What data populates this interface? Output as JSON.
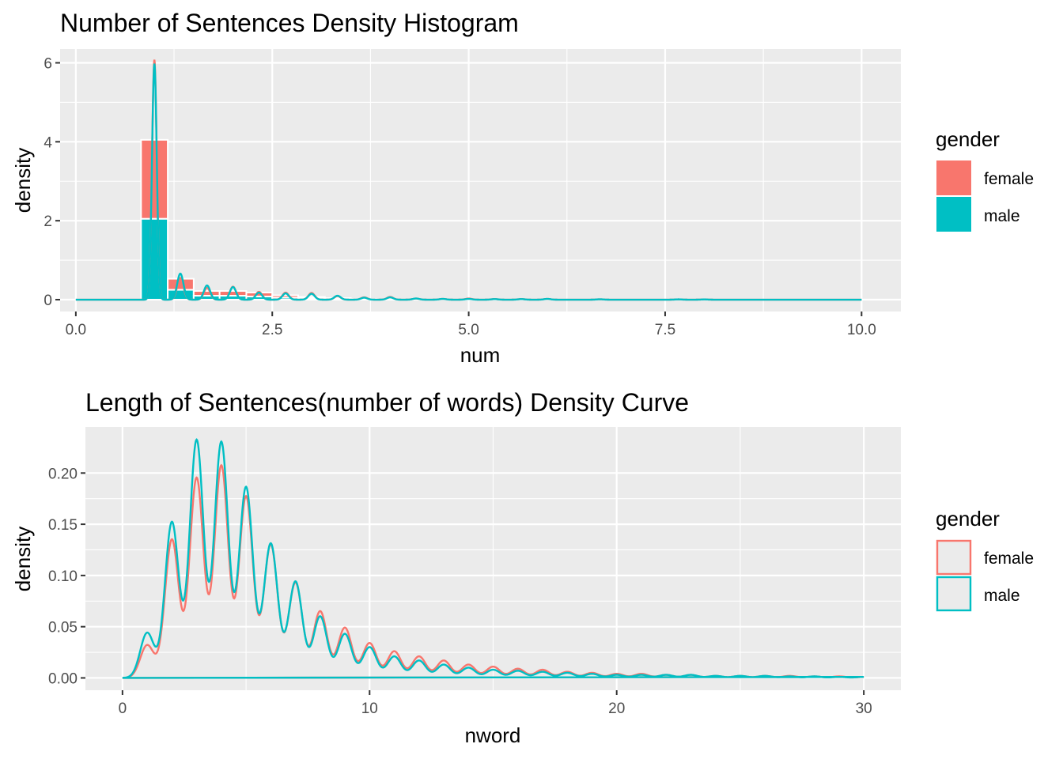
{
  "colors": {
    "female": "#F8766D",
    "male": "#00BFC4",
    "panel": "#EBEBEB",
    "grid": "#FFFFFF"
  },
  "chart_data": [
    {
      "type": "histogram",
      "title": "Number of Sentences Density Histogram",
      "xlabel": "num",
      "ylabel": "density",
      "xlim": [
        -0.2,
        10.5
      ],
      "ylim": [
        -0.3,
        6.35
      ],
      "x_ticks": [
        0,
        2.5,
        5,
        7.5,
        10
      ],
      "x_tick_labels": [
        "0.0",
        "2.5",
        "5.0",
        "7.5",
        "10.0"
      ],
      "y_ticks": [
        0,
        2,
        4,
        6
      ],
      "y_tick_labels": [
        "0",
        "2",
        "4",
        "6"
      ],
      "grid": true,
      "position": "stack",
      "bins": [
        {
          "x0": 0.83,
          "x1": 1.17,
          "female": 2.0,
          "male": 2.05
        },
        {
          "x0": 1.17,
          "x1": 1.5,
          "female": 0.28,
          "male": 0.25
        },
        {
          "x0": 1.5,
          "x1": 1.83,
          "female": 0.12,
          "male": 0.1
        },
        {
          "x0": 1.83,
          "x1": 2.17,
          "female": 0.12,
          "male": 0.1
        },
        {
          "x0": 2.17,
          "x1": 2.5,
          "female": 0.1,
          "male": 0.08
        },
        {
          "x0": 2.5,
          "x1": 2.83,
          "female": 0.06,
          "male": 0.05
        },
        {
          "x0": 2.83,
          "x1": 3.17,
          "female": 0.04,
          "male": 0.03
        },
        {
          "x0": 3.17,
          "x1": 3.5,
          "female": 0.02,
          "male": 0.02
        },
        {
          "x0": 3.5,
          "x1": 3.83,
          "female": 0.01,
          "male": 0.01
        }
      ],
      "density_peaks": [
        {
          "x": 1.0,
          "female": 6.08,
          "male": 5.98,
          "sd": 0.03
        },
        {
          "x": 1.33,
          "female": 0.55,
          "male": 0.66,
          "sd": 0.04
        },
        {
          "x": 1.67,
          "female": 0.3,
          "male": 0.36,
          "sd": 0.04
        },
        {
          "x": 2.0,
          "female": 0.33,
          "male": 0.32,
          "sd": 0.04
        },
        {
          "x": 2.33,
          "female": 0.2,
          "male": 0.18,
          "sd": 0.04
        },
        {
          "x": 2.67,
          "female": 0.18,
          "male": 0.16,
          "sd": 0.04
        },
        {
          "x": 3.0,
          "female": 0.17,
          "male": 0.15,
          "sd": 0.04
        },
        {
          "x": 3.33,
          "female": 0.09,
          "male": 0.1,
          "sd": 0.04
        },
        {
          "x": 3.67,
          "female": 0.06,
          "male": 0.05,
          "sd": 0.04
        },
        {
          "x": 4.0,
          "female": 0.07,
          "male": 0.06,
          "sd": 0.04
        },
        {
          "x": 4.33,
          "female": 0.03,
          "male": 0.03,
          "sd": 0.04
        },
        {
          "x": 4.67,
          "female": 0.02,
          "male": 0.02,
          "sd": 0.04
        },
        {
          "x": 5.0,
          "female": 0.03,
          "male": 0.02,
          "sd": 0.04
        },
        {
          "x": 5.33,
          "female": 0.015,
          "male": 0.015,
          "sd": 0.04
        },
        {
          "x": 5.67,
          "female": 0.015,
          "male": 0.015,
          "sd": 0.04
        },
        {
          "x": 6.0,
          "female": 0.02,
          "male": 0.02,
          "sd": 0.04
        },
        {
          "x": 6.67,
          "female": 0.01,
          "male": 0.01,
          "sd": 0.04
        },
        {
          "x": 7.67,
          "female": 0.008,
          "male": 0.008,
          "sd": 0.04
        },
        {
          "x": 8.0,
          "female": 0.006,
          "male": 0.006,
          "sd": 0.04
        }
      ],
      "density_range": [
        0,
        10
      ],
      "legend": {
        "title": "gender",
        "position": "right",
        "style": "fill",
        "entries": [
          "female",
          "male"
        ]
      }
    },
    {
      "type": "line",
      "title": "Length of Sentences(number of words) Density Curve",
      "xlabel": "nword",
      "ylabel": "density",
      "xlim": [
        -1.5,
        31.5
      ],
      "ylim": [
        -0.012,
        0.245
      ],
      "x_ticks": [
        0,
        10,
        20,
        30
      ],
      "x_tick_labels": [
        "0",
        "10",
        "20",
        "30"
      ],
      "y_ticks": [
        0,
        0.05,
        0.1,
        0.15,
        0.2
      ],
      "y_tick_labels": [
        "0.00",
        "0.05",
        "0.10",
        "0.15",
        "0.20"
      ],
      "grid": true,
      "density_range": [
        0,
        30
      ],
      "series": [
        {
          "name": "female",
          "peaks": [
            {
              "x": 1,
              "h": 0.032
            },
            {
              "x": 2,
              "h": 0.135
            },
            {
              "x": 3,
              "h": 0.195
            },
            {
              "x": 4,
              "h": 0.207
            },
            {
              "x": 5,
              "h": 0.177
            },
            {
              "x": 6,
              "h": 0.13
            },
            {
              "x": 7,
              "h": 0.093
            },
            {
              "x": 8,
              "h": 0.065
            },
            {
              "x": 9,
              "h": 0.049
            },
            {
              "x": 10,
              "h": 0.034
            },
            {
              "x": 11,
              "h": 0.026
            },
            {
              "x": 12,
              "h": 0.021
            },
            {
              "x": 13,
              "h": 0.017
            },
            {
              "x": 14,
              "h": 0.013
            },
            {
              "x": 15,
              "h": 0.011
            },
            {
              "x": 16,
              "h": 0.009
            },
            {
              "x": 17,
              "h": 0.008
            },
            {
              "x": 18,
              "h": 0.006
            },
            {
              "x": 19,
              "h": 0.005
            },
            {
              "x": 20,
              "h": 0.004
            },
            {
              "x": 21,
              "h": 0.004
            },
            {
              "x": 22,
              "h": 0.003
            },
            {
              "x": 23,
              "h": 0.003
            },
            {
              "x": 24,
              "h": 0.002
            },
            {
              "x": 25,
              "h": 0.002
            },
            {
              "x": 26,
              "h": 0.002
            },
            {
              "x": 27,
              "h": 0.002
            },
            {
              "x": 28,
              "h": 0.0015
            },
            {
              "x": 29,
              "h": 0.0015
            },
            {
              "x": 30,
              "h": 0.001
            }
          ]
        },
        {
          "name": "male",
          "peaks": [
            {
              "x": 1,
              "h": 0.044
            },
            {
              "x": 2,
              "h": 0.152
            },
            {
              "x": 3,
              "h": 0.232
            },
            {
              "x": 4,
              "h": 0.23
            },
            {
              "x": 5,
              "h": 0.186
            },
            {
              "x": 6,
              "h": 0.131
            },
            {
              "x": 7,
              "h": 0.094
            },
            {
              "x": 8,
              "h": 0.06
            },
            {
              "x": 9,
              "h": 0.043
            },
            {
              "x": 10,
              "h": 0.03
            },
            {
              "x": 11,
              "h": 0.021
            },
            {
              "x": 12,
              "h": 0.017
            },
            {
              "x": 13,
              "h": 0.013
            },
            {
              "x": 14,
              "h": 0.01
            },
            {
              "x": 15,
              "h": 0.008
            },
            {
              "x": 16,
              "h": 0.007
            },
            {
              "x": 17,
              "h": 0.006
            },
            {
              "x": 18,
              "h": 0.005
            },
            {
              "x": 19,
              "h": 0.004
            },
            {
              "x": 20,
              "h": 0.003
            },
            {
              "x": 21,
              "h": 0.003
            },
            {
              "x": 22,
              "h": 0.003
            },
            {
              "x": 23,
              "h": 0.003
            },
            {
              "x": 24,
              "h": 0.002
            },
            {
              "x": 25,
              "h": 0.002
            },
            {
              "x": 26,
              "h": 0.002
            },
            {
              "x": 27,
              "h": 0.0015
            },
            {
              "x": 28,
              "h": 0.0015
            },
            {
              "x": 29,
              "h": 0.001
            },
            {
              "x": 30,
              "h": 0.001
            }
          ]
        }
      ],
      "legend": {
        "title": "gender",
        "position": "right",
        "style": "outline",
        "entries": [
          "female",
          "male"
        ]
      }
    }
  ]
}
